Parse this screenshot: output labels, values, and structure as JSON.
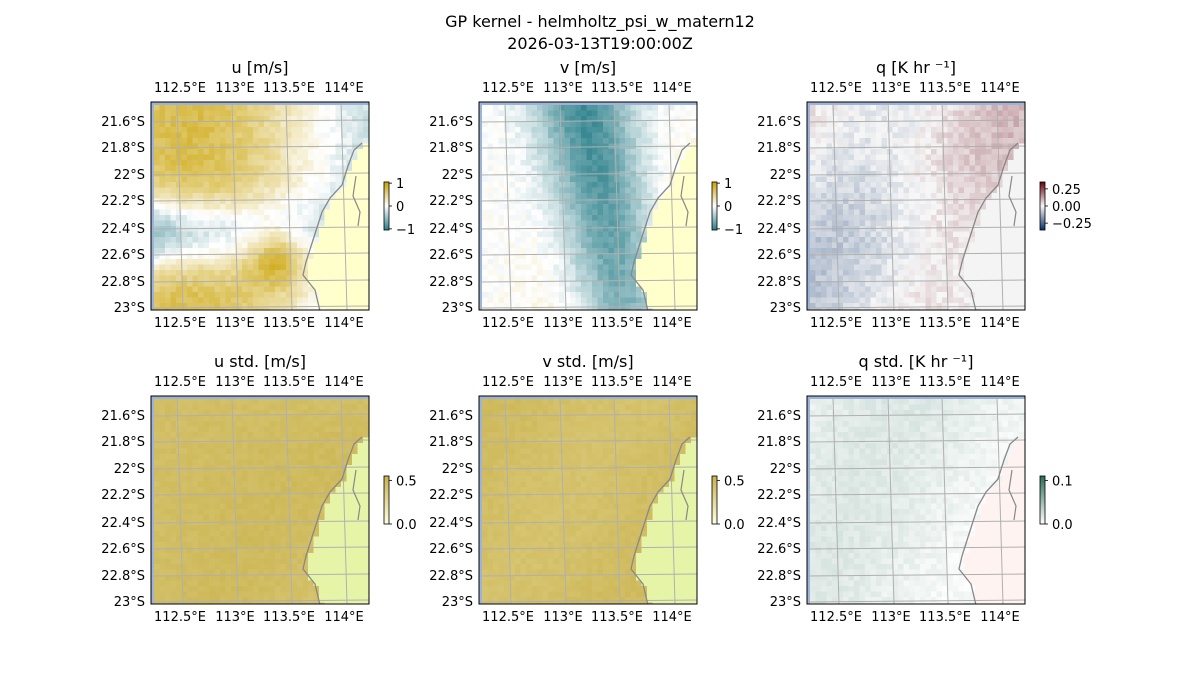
{
  "figure": {
    "title": "GP kernel - helmholtz_psi_w_matern12",
    "subtitle": "2026-03-13T19:00:00Z"
  },
  "chart_data": [
    {
      "type": "heatmap",
      "title": "u [m/s]",
      "x_ticks": [
        "112.5°E",
        "113°E",
        "113.5°E",
        "114°E"
      ],
      "y_ticks": [
        "21.6°S",
        "21.8°S",
        "22°S",
        "22.2°S",
        "22.4°S",
        "22.6°S",
        "22.8°S",
        "23°S"
      ],
      "xlim": [
        112.35,
        114.25
      ],
      "ylim": [
        -23.0,
        -21.45
      ],
      "colorbar": {
        "ticks": [
          "1",
          "0",
          "−1"
        ],
        "tick_values": [
          1,
          0,
          -1
        ],
        "range": [
          -1.05,
          1.05
        ],
        "colors": [
          "#2a7f8a",
          "#ffffff",
          "#c9a100"
        ]
      },
      "field_description": "diverging, mostly positive (yellow) in north and southeast, negative (teal) band across centre-west",
      "grid": true
    },
    {
      "type": "heatmap",
      "title": "v [m/s]",
      "x_ticks": [
        "112.5°E",
        "113°E",
        "113.5°E",
        "114°E"
      ],
      "y_ticks": [
        "21.6°S",
        "21.8°S",
        "22°S",
        "22.2°S",
        "22.4°S",
        "22.6°S",
        "22.8°S",
        "23°S"
      ],
      "xlim": [
        112.35,
        114.25
      ],
      "ylim": [
        -23.0,
        -21.45
      ],
      "colorbar": {
        "ticks": [
          "1",
          "0",
          "−1"
        ],
        "tick_values": [
          1,
          0,
          -1
        ],
        "range": [
          -1.05,
          1.05
        ],
        "colors": [
          "#2a7f8a",
          "#ffffff",
          "#c9a100"
        ]
      },
      "grid": true
    },
    {
      "type": "heatmap",
      "title": "q [K hr ⁻¹]",
      "x_ticks": [
        "112.5°E",
        "113°E",
        "113.5°E",
        "114°E"
      ],
      "y_ticks": [
        "21.6°S",
        "21.8°S",
        "22°S",
        "22.2°S",
        "22.4°S",
        "22.6°S",
        "22.8°S",
        "23°S"
      ],
      "xlim": [
        112.35,
        114.25
      ],
      "ylim": [
        -23.0,
        -21.45
      ],
      "colorbar": {
        "ticks": [
          "0.25",
          "0.00",
          "−0.25"
        ],
        "tick_values": [
          0.25,
          0.0,
          -0.25
        ],
        "range": [
          -0.35,
          0.35
        ],
        "colors": [
          "#08306b",
          "#f7f7f7",
          "#67000d"
        ]
      },
      "grid": true
    },
    {
      "type": "heatmap",
      "title": "u std. [m/s]",
      "x_ticks": [
        "112.5°E",
        "113°E",
        "113.5°E",
        "114°E"
      ],
      "y_ticks": [
        "21.6°S",
        "21.8°S",
        "22°S",
        "22.2°S",
        "22.4°S",
        "22.6°S",
        "22.8°S",
        "23°S"
      ],
      "xlim": [
        112.35,
        114.25
      ],
      "ylim": [
        -23.0,
        -21.45
      ],
      "colorbar": {
        "ticks": [
          "0.5",
          "0.0"
        ],
        "tick_values": [
          0.5,
          0.0
        ],
        "range": [
          0.0,
          0.55
        ],
        "colors": [
          "#ffffe0",
          "#c8b04a"
        ]
      },
      "grid": true
    },
    {
      "type": "heatmap",
      "title": "v std. [m/s]",
      "x_ticks": [
        "112.5°E",
        "113°E",
        "113.5°E",
        "114°E"
      ],
      "y_ticks": [
        "21.6°S",
        "21.8°S",
        "22°S",
        "22.2°S",
        "22.4°S",
        "22.6°S",
        "22.8°S",
        "23°S"
      ],
      "xlim": [
        112.35,
        114.25
      ],
      "ylim": [
        -23.0,
        -21.45
      ],
      "colorbar": {
        "ticks": [
          "0.5",
          "0.0"
        ],
        "tick_values": [
          0.5,
          0.0
        ],
        "range": [
          0.0,
          0.55
        ],
        "colors": [
          "#ffffe0",
          "#c8b04a"
        ]
      },
      "grid": true
    },
    {
      "type": "heatmap",
      "title": "q std. [K hr ⁻¹]",
      "x_ticks": [
        "112.5°E",
        "113°E",
        "113.5°E",
        "114°E"
      ],
      "y_ticks": [
        "21.6°S",
        "21.8°S",
        "22°S",
        "22.2°S",
        "22.4°S",
        "22.6°S",
        "22.8°S",
        "23°S"
      ],
      "xlim": [
        112.35,
        114.25
      ],
      "ylim": [
        -23.0,
        -21.45
      ],
      "colorbar": {
        "ticks": [
          "0.1",
          "0.0"
        ],
        "tick_values": [
          0.1,
          0.0
        ],
        "range": [
          0.0,
          0.11
        ],
        "colors": [
          "#ffffff",
          "#2a6e5a"
        ]
      },
      "grid": true
    }
  ]
}
